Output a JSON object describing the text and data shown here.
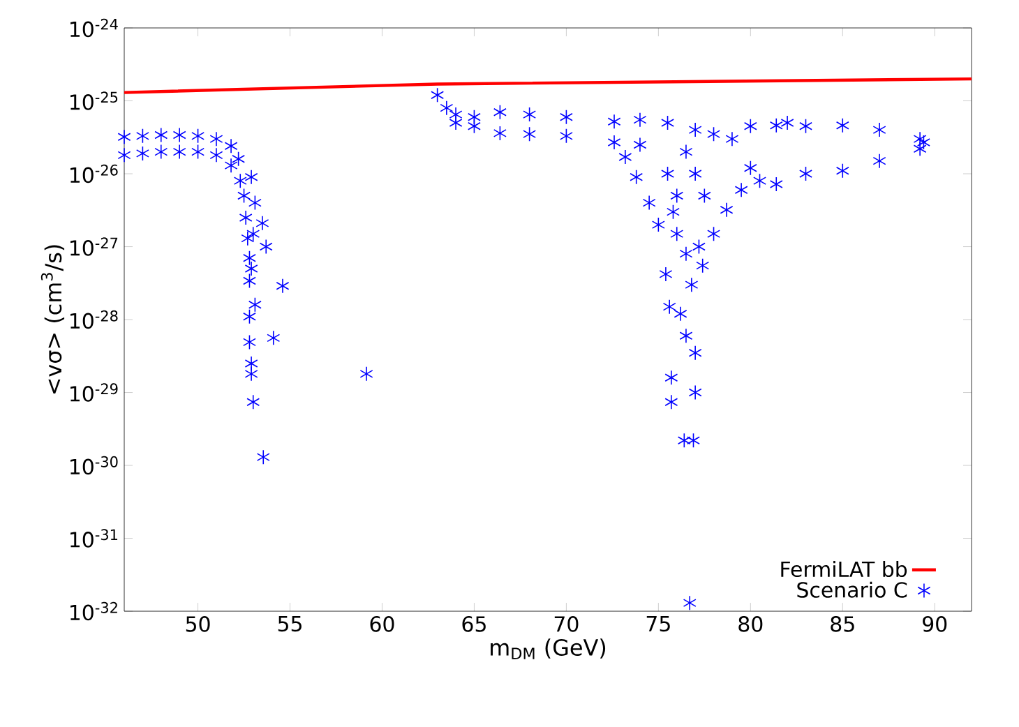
{
  "chart_data": {
    "type": "scatter",
    "xlabel": "m$_{DM}$ (GeV)",
    "ylabel": "<vσ> (cm$^{3}$/s)",
    "xlim": [
      46,
      92
    ],
    "ylim": [
      1e-32,
      1e-24
    ],
    "log": "y",
    "xticks": [
      50,
      55,
      60,
      65,
      70,
      75,
      80,
      85,
      90
    ],
    "yticks": [
      {
        "value": 1e-32,
        "label": "10$^{-32}$"
      },
      {
        "value": 1e-31,
        "label": "10$^{-31}$"
      },
      {
        "value": 1e-30,
        "label": "10$^{-30}$"
      },
      {
        "value": 1e-29,
        "label": "10$^{-29}$"
      },
      {
        "value": 1e-28,
        "label": "10$^{-28}$"
      },
      {
        "value": 1e-27,
        "label": "10$^{-27}$"
      },
      {
        "value": 1e-26,
        "label": "10$^{-26}$"
      },
      {
        "value": 1e-25,
        "label": "10$^{-25}$"
      },
      {
        "value": 1e-24,
        "label": "10$^{-24}$"
      }
    ],
    "legend": "bottom right",
    "grid": false,
    "series": [
      {
        "type": "line",
        "name": "FermiLAT bb",
        "color": "#ff0000",
        "marker": "none",
        "line_style": "solid",
        "x": [
          46,
          63,
          92
        ],
        "values": [
          1.3e-25,
          1.7e-25,
          2e-25
        ]
      },
      {
        "type": "scatter",
        "name": "Scenario C",
        "color": "#0000ff",
        "marker": "cross",
        "x": [
          46,
          46,
          47,
          47,
          48,
          48,
          49,
          49,
          50,
          50,
          51,
          51,
          51.8,
          51.8,
          52.2,
          52.3,
          52.5,
          52.6,
          52.7,
          52.8,
          52.8,
          52.9,
          53.0,
          53.1,
          52.9,
          53.5,
          53.7,
          54.6,
          53.1,
          54.1,
          52.8,
          52.8,
          52.9,
          52.9,
          53.0,
          53.55,
          59.15,
          63.0,
          63.5,
          64,
          64,
          65,
          65,
          66.4,
          66.4,
          68,
          68,
          70,
          70,
          72.6,
          72.6,
          74,
          74,
          75.5,
          77,
          78,
          79,
          73.2,
          73.8,
          74.5,
          75,
          75.4,
          75.6,
          75.7,
          75.7,
          76.4,
          76.9,
          77,
          77,
          76.5,
          76.2,
          76.8,
          77.2,
          77.4,
          78.0,
          78.7,
          79.5,
          80.5,
          76.7,
          75.5,
          76,
          76.5,
          77,
          77.5,
          76,
          76.5,
          75.8,
          80,
          80,
          81.4,
          81.4,
          82,
          83,
          83,
          85,
          85,
          87,
          87,
          89.2,
          89.2,
          89.4
        ],
        "values": [
          3.2e-26,
          1.8e-26,
          3.3e-26,
          1.9e-26,
          3.4e-26,
          2e-26,
          3.4e-26,
          2e-26,
          3.3e-26,
          2e-26,
          3e-26,
          1.8e-26,
          2.4e-26,
          1.3e-26,
          1.6e-26,
          8e-27,
          5e-27,
          2.5e-27,
          1.3e-27,
          7e-28,
          3.4e-28,
          5e-28,
          1.5e-27,
          4e-27,
          9e-27,
          2.1e-27,
          1e-27,
          2.9e-28,
          1.6e-28,
          5.6e-29,
          1.1e-28,
          4.9e-29,
          2.5e-29,
          1.8e-29,
          7.4e-30,
          1.3e-30,
          1.8e-29,
          1.2e-25,
          8e-26,
          6.5e-26,
          5e-26,
          6e-26,
          4.5e-26,
          7e-26,
          3.6e-26,
          6.5e-26,
          3.5e-26,
          6e-26,
          3.3e-26,
          5.2e-26,
          2.7e-26,
          5.5e-26,
          2.5e-26,
          5e-26,
          4e-26,
          3.5e-26,
          3e-26,
          1.7e-26,
          9e-27,
          4e-27,
          2e-27,
          4.2e-28,
          1.5e-28,
          1.6e-29,
          7.4e-30,
          2.2e-30,
          2.2e-30,
          3.5e-29,
          1e-29,
          6e-29,
          1.2e-28,
          3e-28,
          1e-27,
          5.5e-28,
          1.5e-27,
          3.2e-27,
          6e-27,
          8e-27,
          1.3e-32,
          1e-26,
          5e-27,
          2e-26,
          1e-26,
          5e-27,
          1.5e-27,
          8e-28,
          3e-27,
          4.5e-26,
          1.2e-26,
          4.6e-26,
          7.2e-27,
          5e-26,
          4.5e-26,
          1e-26,
          4.6e-26,
          1.1e-26,
          4e-26,
          1.5e-26,
          3e-26,
          2.2e-26,
          2.7e-26
        ]
      }
    ]
  }
}
